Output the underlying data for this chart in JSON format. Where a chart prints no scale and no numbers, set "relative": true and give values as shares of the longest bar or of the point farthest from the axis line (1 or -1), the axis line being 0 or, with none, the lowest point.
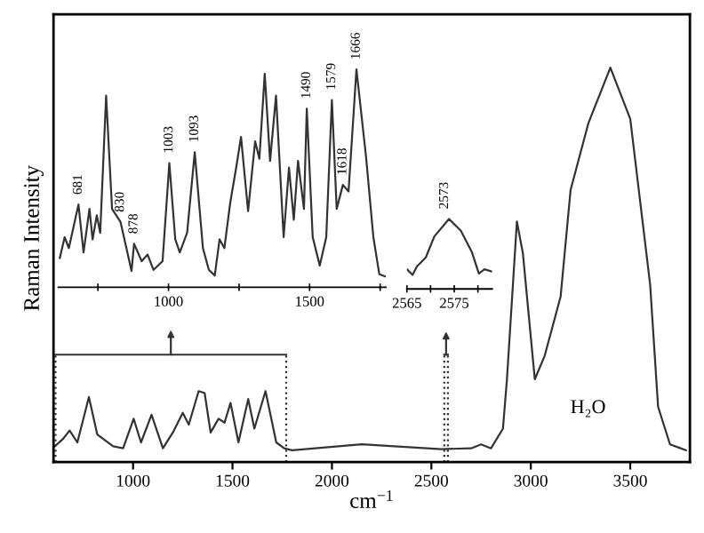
{
  "chart_data": [
    {
      "type": "line",
      "relative": true,
      "xlabel": "cm$^{−1}$",
      "ylabel": "Raman Intensity",
      "xlim": [
        600,
        3800
      ],
      "xticks": [
        1000,
        1500,
        2000,
        2500,
        3000,
        3500
      ],
      "tick_labels": "x",
      "x": [
        600,
        650,
        681,
        720,
        778,
        820,
        900,
        950,
        1003,
        1040,
        1093,
        1150,
        1200,
        1250,
        1280,
        1330,
        1360,
        1390,
        1430,
        1460,
        1490,
        1530,
        1579,
        1610,
        1666,
        1720,
        1760,
        1800,
        2150,
        2550,
        2700,
        2750,
        2800,
        2860,
        2880,
        2930,
        2960,
        3020,
        3070,
        3150,
        3200,
        3290,
        3400,
        3500,
        3600,
        3640,
        3700,
        3780
      ],
      "series": [
        {
          "color": "#333333",
          "values": [
            0.037,
            0.06,
            0.08,
            0.05,
            0.165,
            0.07,
            0.04,
            0.035,
            0.11,
            0.05,
            0.12,
            0.035,
            0.075,
            0.125,
            0.095,
            0.18,
            0.175,
            0.075,
            0.11,
            0.1,
            0.15,
            0.05,
            0.16,
            0.085,
            0.18,
            0.05,
            0.035,
            0.03,
            0.045,
            0.033,
            0.035,
            0.045,
            0.035,
            0.085,
            0.21,
            0.61,
            0.53,
            0.21,
            0.27,
            0.42,
            0.69,
            0.86,
            1.0,
            0.87,
            0.45,
            0.14,
            0.045,
            0.03
          ]
        }
      ],
      "annotations": [
        "H₂O"
      ]
    },
    {
      "type": "line",
      "relative": true,
      "xlim": [
        610,
        1770
      ],
      "xticks": [
        {
          "value": 750,
          "label": null
        },
        1000,
        {
          "value": 1250,
          "label": null
        },
        1500,
        {
          "value": 1750,
          "label": null
        }
      ],
      "tick_labels": "x",
      "x": [
        615,
        632,
        647,
        681,
        699,
        720,
        731,
        746,
        758,
        779,
        800,
        830,
        869,
        878,
        905,
        926,
        947,
        979,
        1003,
        1024,
        1040,
        1066,
        1093,
        1122,
        1143,
        1164,
        1181,
        1198,
        1219,
        1240,
        1257,
        1282,
        1307,
        1322,
        1341,
        1360,
        1381,
        1408,
        1427,
        1444,
        1459,
        1480,
        1490,
        1511,
        1536,
        1559,
        1579,
        1596,
        1618,
        1638,
        1666,
        1700,
        1726,
        1747,
        1768
      ],
      "series": [
        {
          "color": "#333333",
          "values": [
            0.135,
            0.23,
            0.18,
            0.38,
            0.16,
            0.36,
            0.22,
            0.33,
            0.25,
            0.88,
            0.36,
            0.3,
            0.075,
            0.2,
            0.12,
            0.15,
            0.08,
            0.12,
            0.57,
            0.22,
            0.16,
            0.25,
            0.62,
            0.18,
            0.08,
            0.054,
            0.22,
            0.18,
            0.39,
            0.55,
            0.69,
            0.35,
            0.67,
            0.59,
            0.98,
            0.58,
            0.88,
            0.23,
            0.55,
            0.31,
            0.58,
            0.36,
            0.82,
            0.23,
            0.1,
            0.23,
            0.86,
            0.36,
            0.47,
            0.44,
            1.0,
            0.6,
            0.23,
            0.06,
            0.05
          ]
        }
      ],
      "annotations": [
        {
          "text": "681",
          "x": 681,
          "y": 0.38
        },
        {
          "text": "830",
          "x": 830,
          "y": 0.3
        },
        {
          "text": "878",
          "x": 878,
          "y": 0.2
        },
        {
          "text": "1003",
          "x": 1003,
          "y": 0.57
        },
        {
          "text": "1093",
          "x": 1093,
          "y": 0.62
        },
        {
          "text": "1490",
          "x": 1490,
          "y": 0.82
        },
        {
          "text": "1579",
          "x": 1579,
          "y": 0.86
        },
        {
          "text": "1618",
          "x": 1618,
          "y": 0.47
        },
        {
          "text": "1666",
          "x": 1666,
          "y": 1.0
        }
      ]
    },
    {
      "type": "line",
      "relative": true,
      "xlim": [
        2565,
        2583
      ],
      "xticks": [
        2565,
        {
          "value": 2570,
          "label": null
        },
        2575,
        {
          "value": 2580,
          "label": null
        }
      ],
      "tick_labels": "x",
      "x": [
        2565,
        2566.2,
        2567.1,
        2569,
        2570.8,
        2573.9,
        2576.4,
        2578.7,
        2580.2,
        2581.4,
        2582.9
      ],
      "series": [
        {
          "color": "#333333",
          "values": [
            0.28,
            0.2,
            0.32,
            0.45,
            0.75,
            1.0,
            0.83,
            0.53,
            0.22,
            0.28,
            0.25
          ]
        }
      ],
      "annotations": [
        {
          "text": "2573",
          "x": 2573,
          "y": 1.0
        }
      ]
    }
  ]
}
